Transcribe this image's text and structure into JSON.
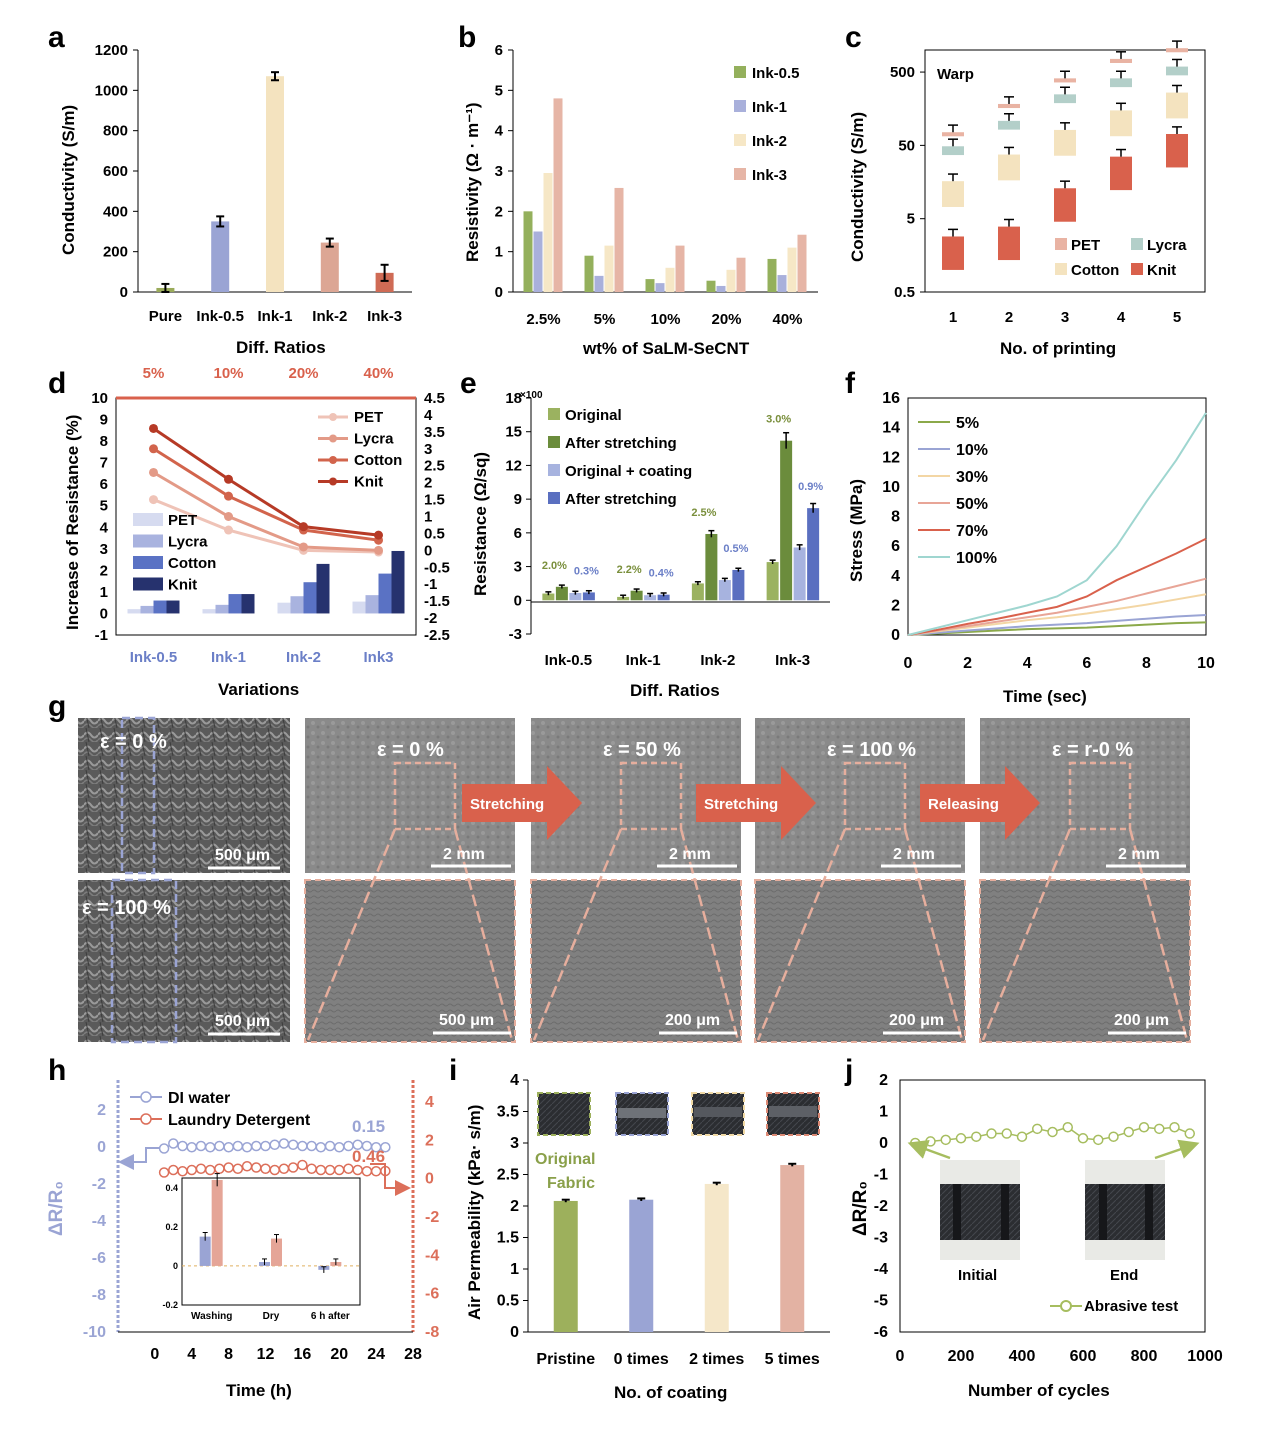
{
  "panels": [
    "a",
    "b",
    "c",
    "d",
    "e",
    "f",
    "g",
    "h",
    "i",
    "j"
  ],
  "chart_data": [
    {
      "id": "a",
      "type": "bar",
      "categories": [
        "Pure",
        "Ink-0.5",
        "Ink-1",
        "Ink-2",
        "Ink-3"
      ],
      "values": [
        20,
        350,
        1070,
        245,
        95
      ],
      "errors": [
        20,
        25,
        20,
        20,
        40
      ],
      "colors": [
        "#9aab5a",
        "#9aa4d4",
        "#f4e3bf",
        "#dca694",
        "#cf6b55"
      ],
      "xlabel": "Diff. Ratios",
      "ylabel": "Conductivity (S/m)",
      "ylim": [
        0,
        1200
      ],
      "yticks": [
        0,
        200,
        400,
        600,
        800,
        1000,
        1200
      ]
    },
    {
      "id": "b",
      "type": "bar",
      "categories": [
        "2.5%",
        "5%",
        "10%",
        "20%",
        "40%"
      ],
      "series": [
        {
          "name": "Ink-0.5",
          "color": "#94b05c",
          "values": [
            2.0,
            0.9,
            0.32,
            0.28,
            0.82
          ]
        },
        {
          "name": "Ink-1",
          "color": "#a9b0db",
          "values": [
            1.5,
            0.4,
            0.22,
            0.15,
            0.42
          ]
        },
        {
          "name": "Ink-2",
          "color": "#f6e7c6",
          "values": [
            2.95,
            1.15,
            0.6,
            0.55,
            1.1
          ]
        },
        {
          "name": "Ink-3",
          "color": "#e6b5a6",
          "values": [
            4.8,
            2.58,
            1.15,
            0.85,
            1.42
          ]
        }
      ],
      "xlabel": "wt% of SaLM-SeCNT",
      "ylabel": "Resistivity (Ω · m⁻¹)",
      "ylim": [
        0,
        6
      ],
      "yticks": [
        0,
        1,
        2,
        3,
        4,
        5,
        6
      ]
    },
    {
      "id": "c",
      "type": "bar",
      "annotation": "Warp",
      "log_scale": true,
      "categories": [
        "1",
        "2",
        "3",
        "4",
        "5"
      ],
      "series": [
        {
          "name": "PET",
          "color": "#e9b3a3",
          "values": [
            70,
            170,
            380,
            700,
            980
          ]
        },
        {
          "name": "Lycra",
          "color": "#b3cfc9",
          "values": [
            45,
            100,
            230,
            380,
            550
          ]
        },
        {
          "name": "Cotton",
          "color": "#f4e3bf",
          "values": [
            13,
            30,
            65,
            120,
            210
          ]
        },
        {
          "name": "Knit",
          "color": "#d9614c",
          "values": [
            2.2,
            3,
            10,
            27,
            55
          ]
        }
      ],
      "xlabel": "No. of printing",
      "ylabel": "Conductivity (S/m)",
      "ylim": [
        0.5,
        1000
      ],
      "yticks": [
        "0.5",
        "5",
        "50",
        "500"
      ]
    },
    {
      "id": "d",
      "type": "bar",
      "bars": {
        "categories": [
          "Ink-0.5",
          "Ink-1",
          "Ink-2",
          "Ink3"
        ],
        "series": [
          {
            "name": "PET",
            "color": "#d6dbf0",
            "values": [
              0.2,
              0.2,
              0.5,
              0.55
            ]
          },
          {
            "name": "Lycra",
            "color": "#a9b3df",
            "values": [
              0.35,
              0.4,
              0.8,
              0.85
            ]
          },
          {
            "name": "Cotton",
            "color": "#5a72c4",
            "values": [
              0.6,
              0.9,
              1.45,
              1.85
            ]
          },
          {
            "name": "Knit",
            "color": "#26326e",
            "values": [
              0.6,
              0.9,
              2.3,
              2.9
            ]
          }
        ]
      },
      "lines": {
        "categories": [
          "5%",
          "10%",
          "20%",
          "40%"
        ],
        "series": [
          {
            "name": "PET",
            "color": "#efc3b7",
            "values": [
              1.5,
              0.6,
              0.0,
              -0.05
            ]
          },
          {
            "name": "Lycra",
            "color": "#e39a87",
            "values": [
              2.3,
              1.0,
              0.1,
              0.0
            ]
          },
          {
            "name": "Cotton",
            "color": "#d2644c",
            "values": [
              3.0,
              1.6,
              0.6,
              0.3
            ]
          },
          {
            "name": "Knit",
            "color": "#b63a26",
            "values": [
              3.6,
              2.1,
              0.7,
              0.45
            ]
          }
        ]
      },
      "xlabel": "Variations",
      "ylabel": "Increase of Resistance (%)",
      "ylim": [
        -1,
        10
      ],
      "y2lim": [
        -2.5,
        4.5
      ],
      "yticks": [
        "-1",
        "0",
        "1",
        "2",
        "3",
        "4",
        "5",
        "6",
        "7",
        "8",
        "9",
        "10"
      ],
      "y2ticks": [
        "-2.5",
        "-2",
        "-1.5",
        "-1",
        "-0.5",
        "0",
        "0.5",
        "1",
        "1.5",
        "2",
        "2.5",
        "3",
        "3.5",
        "4",
        "4.5"
      ]
    },
    {
      "id": "e",
      "type": "bar",
      "categories": [
        "Ink-0.5",
        "Ink-1",
        "Ink-2",
        "Ink-3"
      ],
      "series": [
        {
          "name": "Original",
          "color": "#9bb260",
          "values": [
            0.6,
            0.3,
            1.5,
            3.4
          ]
        },
        {
          "name": "After stretching",
          "color": "#6b8c3c",
          "values": [
            1.2,
            0.85,
            5.9,
            14.2
          ]
        },
        {
          "name": "Original + coating",
          "color": "#a7b3df",
          "values": [
            0.65,
            0.45,
            1.8,
            4.7
          ]
        },
        {
          "name": "After stretching",
          "color": "#5a6fc0",
          "values": [
            0.7,
            0.5,
            2.7,
            8.2
          ]
        }
      ],
      "annotations_green": [
        "2.0%",
        "2.2%",
        "2.5%",
        "3.0%"
      ],
      "annotations_blue": [
        "0.3%",
        "0.4%",
        "0.5%",
        "0.9%"
      ],
      "multiplier": "×100",
      "xlabel": "Diff. Ratios",
      "ylabel": "Resistance (Ω/sq)",
      "ylim": [
        -3,
        18
      ],
      "yticks": [
        "-3",
        "0",
        "3",
        "6",
        "9",
        "12",
        "15",
        "18"
      ]
    },
    {
      "id": "f",
      "type": "line",
      "x": [
        0,
        1,
        2,
        3,
        4,
        5,
        6,
        7,
        8,
        9,
        10
      ],
      "series": [
        {
          "name": "5%",
          "color": "#8ba94a",
          "values": [
            0,
            0.1,
            0.2,
            0.3,
            0.4,
            0.45,
            0.5,
            0.6,
            0.7,
            0.8,
            0.85
          ]
        },
        {
          "name": "10%",
          "color": "#9aa4d4",
          "values": [
            0,
            0.15,
            0.3,
            0.45,
            0.6,
            0.7,
            0.8,
            0.95,
            1.1,
            1.25,
            1.35
          ]
        },
        {
          "name": "30%",
          "color": "#f3d6a4",
          "values": [
            0,
            0.25,
            0.5,
            0.75,
            1.0,
            1.2,
            1.45,
            1.75,
            2.05,
            2.4,
            2.75
          ]
        },
        {
          "name": "50%",
          "color": "#e8a597",
          "values": [
            0,
            0.3,
            0.6,
            0.9,
            1.2,
            1.5,
            1.9,
            2.3,
            2.8,
            3.3,
            3.8
          ]
        },
        {
          "name": "70%",
          "color": "#d9614c",
          "values": [
            0,
            0.35,
            0.75,
            1.1,
            1.5,
            1.9,
            2.6,
            3.7,
            4.6,
            5.5,
            6.5
          ]
        },
        {
          "name": "100%",
          "color": "#9fd6d0",
          "values": [
            0,
            0.5,
            1.0,
            1.5,
            2.0,
            2.6,
            3.7,
            6.0,
            9.0,
            11.8,
            15.0
          ]
        }
      ],
      "xlabel": "Time (sec)",
      "ylabel": "Stress (MPa)",
      "xlim": [
        0,
        10
      ],
      "ylim": [
        0,
        16
      ],
      "xticks": [
        "0",
        "2",
        "4",
        "6",
        "8",
        "10"
      ],
      "yticks": [
        "0",
        "2",
        "4",
        "6",
        "8",
        "10",
        "12",
        "14",
        "16"
      ]
    },
    {
      "id": "h",
      "type": "line",
      "x": [
        1,
        2,
        3,
        4,
        5,
        6,
        7,
        8,
        9,
        10,
        11,
        12,
        13,
        14,
        15,
        16,
        17,
        18,
        19,
        20,
        21,
        22,
        23,
        24,
        25
      ],
      "series": [
        {
          "name": "DI water",
          "color": "#9aa4d4",
          "values": [
            0.1,
            0.3,
            0.2,
            0.15,
            0.2,
            0.15,
            0.2,
            0.15,
            0.2,
            0.15,
            0.2,
            0.2,
            0.25,
            0.3,
            0.25,
            0.2,
            0.2,
            0.15,
            0.2,
            0.15,
            0.2,
            0.25,
            0.2,
            0.15,
            0.15
          ]
        },
        {
          "name": "Laundry Detergent",
          "color": "#dc6f5a",
          "values": [
            0.4,
            0.5,
            0.45,
            0.5,
            0.55,
            0.5,
            0.55,
            0.6,
            0.55,
            0.65,
            0.6,
            0.55,
            0.5,
            0.55,
            0.6,
            0.7,
            0.55,
            0.5,
            0.5,
            0.5,
            0.55,
            0.5,
            0.45,
            0.45,
            0.46
          ]
        }
      ],
      "end_labels": [
        "0.15",
        "0.46"
      ],
      "inset": {
        "categories": [
          "Washing",
          "Dry",
          "6 h after"
        ],
        "series": [
          {
            "name": "DI water",
            "color": "#9aa4d4",
            "values": [
              0.15,
              0.02,
              -0.02
            ]
          },
          {
            "name": "Laundry Detergent",
            "color": "#e5a597",
            "values": [
              0.44,
              0.14,
              0.02
            ]
          }
        ],
        "ylim": [
          -0.2,
          0.45
        ],
        "yticks": [
          "-0.2",
          "0",
          "0.2",
          "0.4"
        ]
      },
      "xlabel": "Time (h)",
      "ylabel": "ΔR/R₀",
      "xticks": [
        "0",
        "4",
        "8",
        "12",
        "16",
        "20",
        "24",
        "28"
      ],
      "yticks": [
        "2",
        "0",
        "-2",
        "-4",
        "-6",
        "-8",
        "-10"
      ],
      "y2ticks": [
        "4",
        "2",
        "0",
        "-2",
        "-4",
        "-6",
        "-8"
      ]
    },
    {
      "id": "i",
      "type": "bar",
      "categories": [
        "Pristine",
        "0 times",
        "2 times",
        "5 times"
      ],
      "values": [
        2.08,
        2.1,
        2.35,
        2.65
      ],
      "colors": [
        "#9db05c",
        "#9aa4d4",
        "#f5e7c9",
        "#e3b2a3"
      ],
      "annotation": [
        "Original",
        "Fabric"
      ],
      "xlabel": "No. of coating",
      "ylabel": "Air Permeability (kPa· s/m)",
      "ylim": [
        0,
        4
      ],
      "yticks": [
        "0",
        "0.5",
        "1",
        "1.5",
        "2",
        "2.5",
        "3",
        "3.5",
        "4"
      ]
    },
    {
      "id": "j",
      "type": "line",
      "x": [
        50,
        100,
        150,
        200,
        250,
        300,
        350,
        400,
        450,
        500,
        550,
        600,
        650,
        700,
        750,
        800,
        850,
        900,
        950
      ],
      "series": [
        {
          "name": "Abrasive test",
          "color": "#a6bd5f",
          "values": [
            0.0,
            0.05,
            0.1,
            0.15,
            0.2,
            0.3,
            0.3,
            0.2,
            0.45,
            0.35,
            0.5,
            0.15,
            0.1,
            0.2,
            0.35,
            0.5,
            0.45,
            0.5,
            0.3
          ]
        }
      ],
      "photo_labels": [
        "Initial",
        "End"
      ],
      "xlabel": "Number of cycles",
      "ylabel": "ΔR/R₀",
      "xlim": [
        0,
        1000
      ],
      "ylim": [
        -6,
        2
      ],
      "xticks": [
        "0",
        "200",
        "400",
        "600",
        "800",
        "1000"
      ],
      "yticks": [
        "2",
        "1",
        "0",
        "-1",
        "-2",
        "-3",
        "-4",
        "-5",
        "-6"
      ]
    }
  ],
  "sem": {
    "left_labels": [
      "ε = 0 %",
      "ε = 100 %"
    ],
    "left_scale": [
      "500 μm",
      "500 μm"
    ],
    "top_labels": [
      "ε = 0 %",
      "ε = 50 %",
      "ε = 100 %",
      "ε = r-0 %"
    ],
    "top_scale": [
      "2 mm",
      "2 mm",
      "2 mm",
      "2 mm"
    ],
    "bottom_scale": [
      "500 μm",
      "200 μm",
      "200 μm",
      "200 μm"
    ],
    "arrows": [
      "Stretching",
      "Stretching",
      "Releasing"
    ]
  }
}
